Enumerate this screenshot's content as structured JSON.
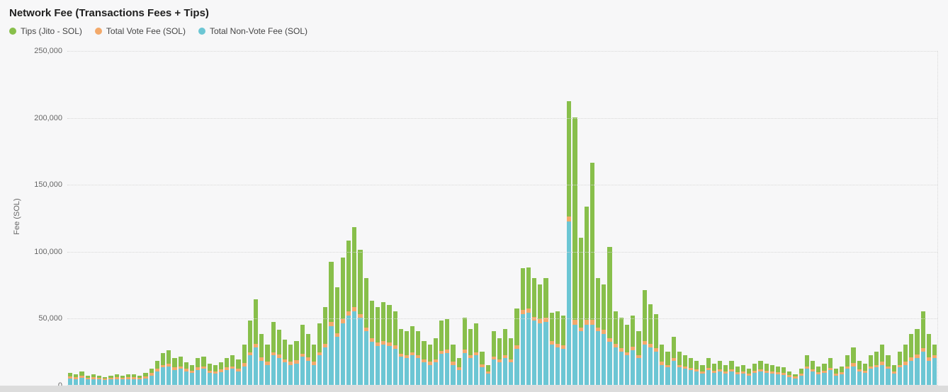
{
  "title": "Network Fee (Transactions Fees + Tips)",
  "legend": [
    {
      "label": "Tips (Jito - SOL)",
      "color": "#88bf4b"
    },
    {
      "label": "Total Vote Fee (SOL)",
      "color": "#f3a96a"
    },
    {
      "label": "Total Non-Vote Fee (SOL)",
      "color": "#6cc6d4"
    }
  ],
  "chart_data": {
    "type": "bar",
    "stacked": true,
    "title": "Network Fee (Transactions Fees + Tips)",
    "xlabel": "",
    "ylabel": "Fee (SOL)",
    "ylim": [
      0,
      250000
    ],
    "yticks": [
      0,
      50000,
      100000,
      150000,
      200000,
      250000
    ],
    "ytick_labels": [
      "0",
      "50,000",
      "100,000",
      "150,000",
      "200,000",
      "250,000"
    ],
    "x_tick_labels_visible": false,
    "grid": "horizontal-dotted",
    "legend_position": "top-left",
    "num_bars": 150,
    "series": [
      {
        "key": "non-vote-fee",
        "name": "Total Non-Vote Fee (SOL)",
        "color": "#6cc6d4",
        "values": [
          5000,
          4500,
          5500,
          4000,
          4500,
          4000,
          3500,
          4000,
          4500,
          4000,
          4500,
          4500,
          4000,
          5000,
          7000,
          10000,
          13000,
          14000,
          11000,
          12000,
          10000,
          9000,
          11000,
          12000,
          9000,
          8500,
          9500,
          11000,
          12000,
          10000,
          14000,
          22000,
          28000,
          18000,
          15000,
          22000,
          20000,
          17000,
          15000,
          16000,
          21000,
          18000,
          15000,
          22000,
          28000,
          44000,
          36000,
          46000,
          52000,
          55000,
          50000,
          40000,
          32000,
          29000,
          30000,
          29000,
          27000,
          21000,
          20000,
          22000,
          20000,
          17000,
          15000,
          17000,
          23000,
          24000,
          15000,
          11000,
          24000,
          20000,
          22000,
          13000,
          8500,
          19000,
          17000,
          20000,
          17000,
          27000,
          53000,
          54000,
          48000,
          46000,
          47000,
          30000,
          28000,
          27000,
          122000,
          45000,
          40000,
          45000,
          45000,
          40000,
          38000,
          32000,
          28000,
          25000,
          22000,
          26000,
          20000,
          30000,
          28000,
          25000,
          15000,
          13000,
          18000,
          13000,
          12000,
          11000,
          10000,
          8500,
          11000,
          9000,
          10000,
          8500,
          10000,
          8000,
          8500,
          7000,
          9000,
          10000,
          9000,
          8500,
          8000,
          7500,
          6000,
          4800,
          7000,
          12000,
          10000,
          8000,
          9000,
          11000,
          7000,
          8000,
          12000,
          14000,
          10000,
          9000,
          12000,
          13000,
          15000,
          12000,
          8500,
          13000,
          15000,
          18000,
          20000,
          25000,
          18000,
          20000
        ]
      },
      {
        "key": "vote-fee",
        "name": "Total Vote Fee (SOL)",
        "color": "#f3a96a",
        "values": [
          1500,
          1500,
          1500,
          1500,
          1500,
          1500,
          1200,
          1300,
          1500,
          1400,
          1500,
          1500,
          1400,
          1500,
          1800,
          2000,
          2000,
          2000,
          2000,
          2000,
          2000,
          1800,
          2000,
          2000,
          1800,
          1800,
          2000,
          2000,
          2000,
          2000,
          2200,
          2500,
          2500,
          2500,
          2200,
          2500,
          2500,
          2300,
          2200,
          2300,
          2500,
          2400,
          2200,
          2500,
          2600,
          3000,
          2800,
          3000,
          3000,
          3000,
          3000,
          3000,
          2800,
          2800,
          2800,
          2800,
          2700,
          2500,
          2400,
          2500,
          2400,
          2300,
          2200,
          2300,
          2500,
          2500,
          2200,
          2000,
          2500,
          2400,
          2500,
          2100,
          1800,
          2400,
          2300,
          2400,
          2300,
          2700,
          3000,
          3000,
          3000,
          3000,
          3000,
          2700,
          2700,
          2700,
          4000,
          3500,
          3000,
          3500,
          3500,
          3000,
          3000,
          3000,
          2700,
          2500,
          2500,
          2600,
          2400,
          2800,
          2700,
          2500,
          2200,
          2000,
          2300,
          2000,
          2000,
          1900,
          1900,
          1800,
          1900,
          1800,
          1900,
          1800,
          1900,
          1700,
          1800,
          1600,
          1800,
          1900,
          1800,
          1800,
          1700,
          1700,
          1500,
          1400,
          1600,
          2000,
          1900,
          1700,
          1800,
          1900,
          1600,
          1700,
          2000,
          2200,
          1900,
          1800,
          2000,
          2000,
          2200,
          2000,
          1800,
          2000,
          2200,
          2400,
          2500,
          2600,
          2400,
          2400
        ]
      },
      {
        "key": "tips",
        "name": "Tips (Jito - SOL)",
        "color": "#88bf4b",
        "values": [
          2500,
          2000,
          3000,
          1500,
          2000,
          1500,
          1300,
          1700,
          2000,
          1600,
          2000,
          2000,
          1600,
          2500,
          3200,
          6000,
          9000,
          10000,
          7000,
          7000,
          5000,
          4200,
          7000,
          7000,
          5200,
          4700,
          5500,
          7000,
          8000,
          7000,
          13800,
          23500,
          33500,
          17500,
          12800,
          22500,
          18500,
          14700,
          12800,
          14700,
          21500,
          17600,
          12800,
          21500,
          27400,
          45000,
          34200,
          46000,
          53000,
          60000,
          48000,
          37000,
          28200,
          26200,
          29200,
          28200,
          25300,
          18500,
          17600,
          19500,
          17600,
          13700,
          12800,
          15700,
          22500,
          22500,
          12800,
          7000,
          23500,
          19600,
          21500,
          9900,
          4700,
          18600,
          15700,
          19600,
          15700,
          27300,
          31000,
          31000,
          29000,
          26000,
          30000,
          21300,
          24300,
          22300,
          86000,
          151500,
          67000,
          84500,
          117500,
          37000,
          34000,
          68000,
          24300,
          22500,
          20500,
          23400,
          17600,
          38200,
          29300,
          25500,
          12800,
          10000,
          15700,
          10000,
          8000,
          7100,
          6100,
          4700,
          7100,
          5200,
          6100,
          4700,
          6100,
          4300,
          4700,
          3400,
          5200,
          6100,
          5200,
          4700,
          4300,
          3800,
          2500,
          1800,
          3400,
          8000,
          6100,
          4300,
          5200,
          7100,
          3400,
          4300,
          8000,
          11800,
          6100,
          5200,
          8000,
          10000,
          12800,
          8000,
          4700,
          10000,
          12800,
          17600,
          19500,
          27400,
          17600,
          7600
        ]
      }
    ]
  }
}
